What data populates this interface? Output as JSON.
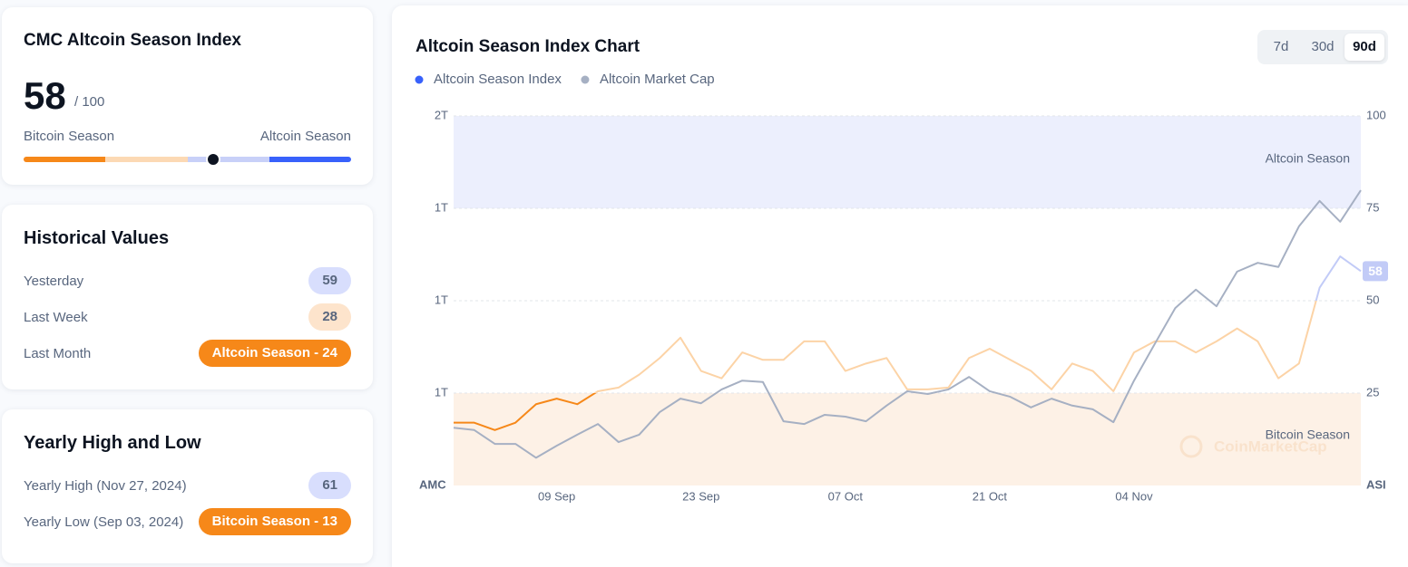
{
  "index_card": {
    "title": "CMC Altcoin Season Index",
    "value": 58,
    "max": {
      "value": 100,
      "label": "/ 100"
    },
    "left_label": "Bitcoin Season",
    "right_label": "Altcoin Season"
  },
  "historical": {
    "title": "Historical Values",
    "rows": [
      {
        "label": "Yesterday",
        "value": "59"
      },
      {
        "label": "Last Week",
        "value": "28"
      },
      {
        "label": "Last Month",
        "value": "Altcoin Season - 24"
      }
    ]
  },
  "yearly": {
    "title": "Yearly High and Low",
    "rows": [
      {
        "label": "Yearly High",
        "date": "(Nov 27, 2024)",
        "value": "61"
      },
      {
        "label": "Yearly Low",
        "date": "(Sep 03, 2024)",
        "value": "Bitcoin Season - 13"
      }
    ]
  },
  "controls": {
    "periods": [
      "7d",
      "30d",
      "90d"
    ],
    "active": "90d"
  },
  "chart_data": {
    "type": "line",
    "title": "Altcoin Season Index Chart",
    "categories": [
      null,
      null,
      null,
      null,
      null,
      "09 Sep",
      null,
      null,
      null,
      null,
      null,
      null,
      "23 Sep",
      null,
      null,
      null,
      null,
      null,
      null,
      "07 Oct",
      null,
      null,
      null,
      null,
      null,
      null,
      "21 Oct",
      null,
      null,
      null,
      null,
      null,
      null,
      "04 Nov",
      null,
      null,
      null,
      null,
      null,
      null,
      null,
      null,
      null,
      null,
      null
    ],
    "series": [
      {
        "name": "Altcoin Season Index",
        "color": "#3861fb",
        "axis": "y2",
        "line_zones": [
          {
            "below": 25,
            "color": "#f68819"
          },
          {
            "below": 50,
            "color": "#fcd3a6"
          },
          {
            "below": 100,
            "color": "#c2cbf7"
          }
        ],
        "values": [
          17,
          17,
          15,
          17,
          22,
          23.5,
          22,
          25.5,
          26.5,
          30,
          34.5,
          40,
          31,
          29,
          36,
          34,
          34,
          39,
          39,
          31,
          33,
          34.5,
          26,
          26,
          26.5,
          34.5,
          37,
          34,
          31,
          26,
          33,
          31,
          25.5,
          36,
          39,
          39,
          36,
          39,
          42.5,
          39,
          29,
          33,
          53.5,
          62,
          58
        ]
      },
      {
        "name": "Altcoin Market Cap",
        "color": "#a6b0c3",
        "axis": "y",
        "values": [
          0.925,
          0.92,
          0.89,
          0.89,
          0.86,
          0.886,
          0.91,
          0.933,
          0.894,
          0.91,
          0.959,
          0.988,
          0.978,
          1.008,
          1.027,
          1.024,
          0.939,
          0.933,
          0.953,
          0.949,
          0.939,
          0.973,
          1.004,
          0.998,
          1.008,
          1.035,
          1.004,
          0.992,
          0.969,
          0.988,
          0.973,
          0.965,
          0.937,
          1.027,
          1.106,
          1.184,
          1.224,
          1.188,
          1.263,
          1.282,
          1.273,
          1.361,
          1.416,
          1.371,
          1.439
        ]
      }
    ],
    "ylabel": "AMC",
    "y2label": "ASI",
    "ylim": [
      0.8,
      1.6
    ],
    "yticks": [
      {
        "value": 1.6,
        "label": "2T"
      },
      {
        "value": 1.4,
        "label": "1T"
      },
      {
        "value": 1.2,
        "label": "1T"
      },
      {
        "value": 1.0,
        "label": "1T"
      }
    ],
    "y2lim": [
      0,
      100
    ],
    "y2ticks": [
      100,
      75,
      50,
      25
    ],
    "bands": [
      {
        "label": "Altcoin Season",
        "from": 75,
        "to": 100,
        "color": "#eceffd"
      },
      {
        "label": "Bitcoin Season",
        "from": 0,
        "to": 25,
        "color": "#fdf1e6"
      }
    ],
    "watermark": "CoinMarketCap",
    "grid": true
  }
}
